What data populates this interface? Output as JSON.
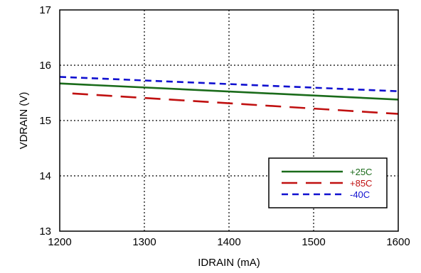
{
  "chart_data": {
    "type": "line",
    "title": "",
    "xlabel": "IDRAIN (mA)",
    "ylabel": "VDRAIN (V)",
    "xlim": [
      1200,
      1600
    ],
    "ylim": [
      13,
      17
    ],
    "x_ticks": [
      "1200",
      "1300",
      "1400",
      "1500",
      "1600"
    ],
    "y_ticks": [
      "13",
      "14",
      "15",
      "16",
      "17"
    ],
    "grid": true,
    "legend_position": "bottom-right",
    "series": [
      {
        "name": "+25C",
        "color": "#1a6b1a",
        "dash": "solid",
        "x": [
          1200,
          1600
        ],
        "y": [
          15.67,
          15.38
        ]
      },
      {
        "name": "+85C",
        "color": "#c01010",
        "dash": "long-dash",
        "x": [
          1215,
          1600
        ],
        "y": [
          15.49,
          15.12
        ]
      },
      {
        "name": "-40C",
        "color": "#1010d0",
        "dash": "short-dash",
        "x": [
          1200,
          1600
        ],
        "y": [
          15.79,
          15.53
        ]
      }
    ]
  }
}
